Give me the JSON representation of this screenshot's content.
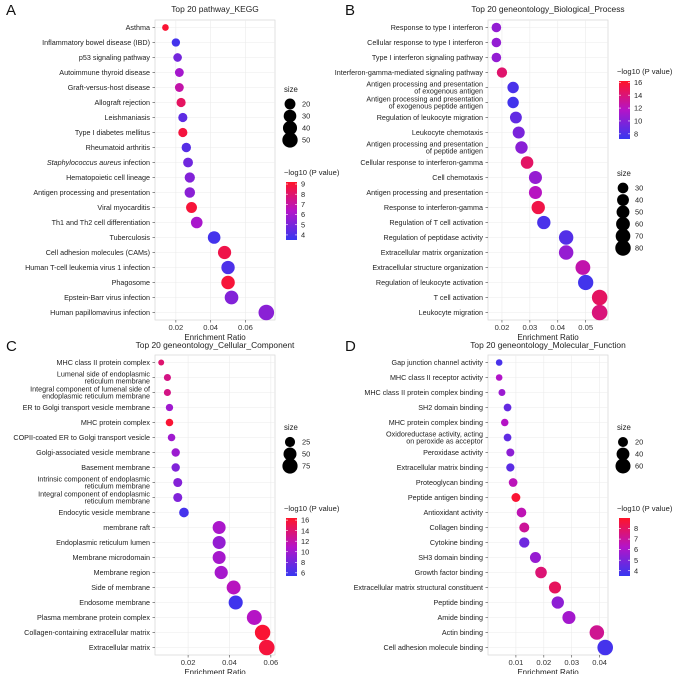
{
  "figure": {
    "panel_letters": [
      "A",
      "B",
      "C",
      "D"
    ]
  },
  "chart_data": [
    {
      "type": "scatter",
      "panel": "A",
      "title": "Top 20 pathway_KEGG",
      "xlabel": "Enrichment Ratio",
      "xlim": [
        0.008,
        0.077
      ],
      "xticks": [
        0.02,
        0.04,
        0.06
      ],
      "xtick_labels": [
        "0.02",
        "0.04",
        "0.06"
      ],
      "grid": true,
      "categories": [
        "Asthma",
        "Inflammatory bowel disease (IBD)",
        "p53 signaling pathway",
        "Autoimmune thyroid disease",
        "Graft-versus-host disease",
        "Allograft rejection",
        "Leishmaniasis",
        "Type I diabetes mellitus",
        "Rheumatoid arthritis",
        "Staphylococcus aureus infection",
        "Hematopoietic cell lineage",
        "Antigen processing and presentation",
        "Viral myocarditis",
        "Th1 and Th2 cell differentiation",
        "Tuberculosis",
        "Cell adhesion molecules (CAMs)",
        "Human T-cell leukemia virus 1 infection",
        "Phagosome",
        "Epstein-Barr virus infection",
        "Human papillomavirus infection"
      ],
      "italic_parts": {
        "Staphylococcus aureus infection": "Staphylococcus aureus"
      },
      "x": [
        0.014,
        0.02,
        0.021,
        0.022,
        0.022,
        0.023,
        0.024,
        0.024,
        0.026,
        0.027,
        0.028,
        0.028,
        0.029,
        0.032,
        0.042,
        0.048,
        0.05,
        0.05,
        0.052,
        0.072
      ],
      "size": [
        4,
        9,
        10,
        11,
        11,
        12,
        12,
        12,
        13,
        15,
        17,
        18,
        20,
        24,
        30,
        34,
        35,
        36,
        37,
        52
      ],
      "color_value": [
        9.0,
        3.8,
        4.9,
        6.0,
        6.9,
        8.2,
        4.4,
        8.8,
        4.2,
        4.8,
        5.2,
        5.4,
        8.9,
        6.1,
        3.8,
        8.6,
        4.0,
        8.9,
        5.2,
        5.4
      ],
      "size_legend": {
        "title": "size",
        "values": [
          20,
          30,
          40,
          50
        ],
        "labels": [
          "20",
          "30",
          "40",
          "50"
        ]
      },
      "color_legend": {
        "title": "−log10 (P value)",
        "range": [
          3.5,
          9.2
        ],
        "ticks": [
          4,
          5,
          6,
          7,
          8,
          9
        ],
        "tick_labels": [
          "4",
          "5",
          "6",
          "7",
          "8",
          "9"
        ]
      }
    },
    {
      "type": "scatter",
      "panel": "B",
      "title": "Top 20 geneontology_Biological_Process",
      "xlabel": "Enrichment Ratio",
      "xlim": [
        0.015,
        0.058
      ],
      "xticks": [
        0.02,
        0.03,
        0.04,
        0.05
      ],
      "xtick_labels": [
        "0.02",
        "0.03",
        "0.04",
        "0.05"
      ],
      "grid": true,
      "categories": [
        "Response to type I interferon",
        "Cellular response to type I interferon",
        "Type I interferon signaling pathway",
        "Interferon-gamma-mediated signaling pathway",
        "Antigen processing and presentation\nof exogenous antigen",
        "Antigen processing and presentation\nof exogenous peptide antigen",
        "Regulation of leukocyte migration",
        "Leukocyte chemotaxis",
        "Antigen processing and presentation\nof peptide antigen",
        "Cellular response to interferon-gamma",
        "Cell chemotaxis",
        "Antigen processing and presentation",
        "Response to interferon-gamma",
        "Regulation of T cell activation",
        "Regulation of peptidase activity",
        "Extracellular matrix organization",
        "Extracellular structure organization",
        "Regulation of leukocyte activation",
        "T cell activation",
        "Leukocyte migration"
      ],
      "x": [
        0.018,
        0.018,
        0.018,
        0.02,
        0.024,
        0.024,
        0.025,
        0.026,
        0.027,
        0.029,
        0.032,
        0.032,
        0.033,
        0.035,
        0.043,
        0.043,
        0.049,
        0.05,
        0.055,
        0.055
      ],
      "size": [
        22,
        22,
        22,
        27,
        36,
        36,
        40,
        42,
        45,
        47,
        52,
        52,
        55,
        55,
        67,
        68,
        72,
        78,
        80,
        82
      ],
      "color_value": [
        10.5,
        10.5,
        10.5,
        14.3,
        7.9,
        7.6,
        8.7,
        9.6,
        10.2,
        14.5,
        10.6,
        11.9,
        15.3,
        7.9,
        8.2,
        10.6,
        12.5,
        7.6,
        14.6,
        13.9
      ],
      "size_legend": {
        "title": "size",
        "values": [
          30,
          40,
          50,
          60,
          70,
          80
        ],
        "labels": [
          "30",
          "40",
          "50",
          "60",
          "70",
          "80"
        ]
      },
      "color_legend": {
        "title": "−log10 (P value)",
        "range": [
          7.2,
          16.2
        ],
        "ticks": [
          8,
          10,
          12,
          14,
          16
        ],
        "tick_labels": [
          "8",
          "10",
          "12",
          "14",
          "16"
        ]
      }
    },
    {
      "type": "scatter",
      "panel": "C",
      "title": "Top 20 geneontology_Cellular_Component",
      "xlabel": "Enrichment Ratio",
      "xlim": [
        0.004,
        0.062
      ],
      "xticks": [
        0.02,
        0.04,
        0.06
      ],
      "xtick_labels": [
        "0.02",
        "0.04",
        "0.06"
      ],
      "grid": true,
      "categories": [
        "MHC class II protein complex",
        "Lumenal side of endoplasmic\nreticulum membrane",
        "Integral component of lumenal side of\nendoplasmic reticulum membrane",
        "ER to Golgi transport vesicle membrane",
        "MHC protein complex",
        "COPII-coated ER to Golgi transport vesicle",
        "Golgi-associated vesicle membrane",
        "Basement membrane",
        "Intrinsic component of endoplasmic\nreticulum membrane",
        "Integral component of endoplasmic\nreticulum membrane",
        "Endocytic vesicle membrane",
        "membrane raft",
        "Endoplasmic reticulum lumen",
        "Membrane microdomain",
        "Membrane region",
        "Side of membrane",
        "Endosome membrane",
        "Plasma membrane protein complex",
        "Collagen-containing extracellular matrix",
        "Extracellular matrix"
      ],
      "x": [
        0.007,
        0.01,
        0.01,
        0.011,
        0.011,
        0.012,
        0.014,
        0.014,
        0.015,
        0.015,
        0.018,
        0.035,
        0.035,
        0.035,
        0.036,
        0.042,
        0.043,
        0.052,
        0.056,
        0.058
      ],
      "size": [
        4,
        8,
        8,
        9,
        10,
        10,
        14,
        14,
        18,
        18,
        22,
        50,
        50,
        50,
        52,
        60,
        62,
        72,
        78,
        80
      ],
      "color_value": [
        14.0,
        13.2,
        13.2,
        10.0,
        16.0,
        10.0,
        9.8,
        8.6,
        8.8,
        8.6,
        6.0,
        10.5,
        9.5,
        10.3,
        10.3,
        11.2,
        5.8,
        11.0,
        16.0,
        15.7
      ],
      "size_legend": {
        "title": "size",
        "values": [
          25,
          50,
          75
        ],
        "labels": [
          "25",
          "50",
          "75"
        ]
      },
      "color_legend": {
        "title": "−log10 (P value)",
        "range": [
          5.4,
          16.4
        ],
        "ticks": [
          6,
          8,
          10,
          12,
          14,
          16
        ],
        "tick_labels": [
          "6",
          "8",
          "10",
          "12",
          "14",
          "16"
        ]
      }
    },
    {
      "type": "scatter",
      "panel": "D",
      "title": "Top 20 geneontology_Molecular_Function",
      "xlabel": "Enrichment Ratio",
      "xlim": [
        0.0,
        0.043
      ],
      "xticks": [
        0.01,
        0.02,
        0.03,
        0.04
      ],
      "xtick_labels": [
        "0.01",
        "0.02",
        "0.03",
        "0.04"
      ],
      "grid": true,
      "categories": [
        "Gap junction channel activity",
        "MHC class II receptor activity",
        "MHC class II protein complex binding",
        "SH2 domain binding",
        "MHC protein complex binding",
        "Oxidoreductase activity, acting\non peroxide as acceptor",
        "Peroxidase activity",
        "Extracellular matrix binding",
        "Proteoglycan binding",
        "Peptide antigen binding",
        "Antioxidant activity",
        "Collagen binding",
        "Cytokine binding",
        "SH3 domain binding",
        "Growth factor binding",
        "Extracellular matrix structural constituent",
        "Peptide binding",
        "Amide binding",
        "Actin binding",
        "Cell adhesion molecule binding"
      ],
      "x": [
        0.004,
        0.004,
        0.005,
        0.007,
        0.006,
        0.007,
        0.008,
        0.008,
        0.009,
        0.01,
        0.012,
        0.013,
        0.013,
        0.017,
        0.019,
        0.024,
        0.025,
        0.029,
        0.039,
        0.042
      ],
      "size": [
        5,
        5,
        6,
        9,
        8,
        9,
        10,
        11,
        13,
        14,
        18,
        20,
        22,
        26,
        30,
        34,
        36,
        42,
        55,
        66
      ],
      "color_value": [
        3.9,
        6.2,
        5.7,
        4.5,
        6.3,
        4.4,
        5.4,
        4.3,
        6.5,
        8.8,
        6.6,
        7.1,
        4.7,
        5.6,
        7.7,
        8.1,
        5.4,
        5.9,
        7.2,
        3.8
      ],
      "size_legend": {
        "title": "size",
        "values": [
          20,
          40,
          60
        ],
        "labels": [
          "20",
          "40",
          "60"
        ]
      },
      "color_legend": {
        "title": "−log10 (P value)",
        "range": [
          3.5,
          9.0
        ],
        "ticks": [
          4,
          5,
          6,
          7,
          8
        ],
        "tick_labels": [
          "4",
          "5",
          "6",
          "7",
          "8"
        ]
      }
    }
  ]
}
